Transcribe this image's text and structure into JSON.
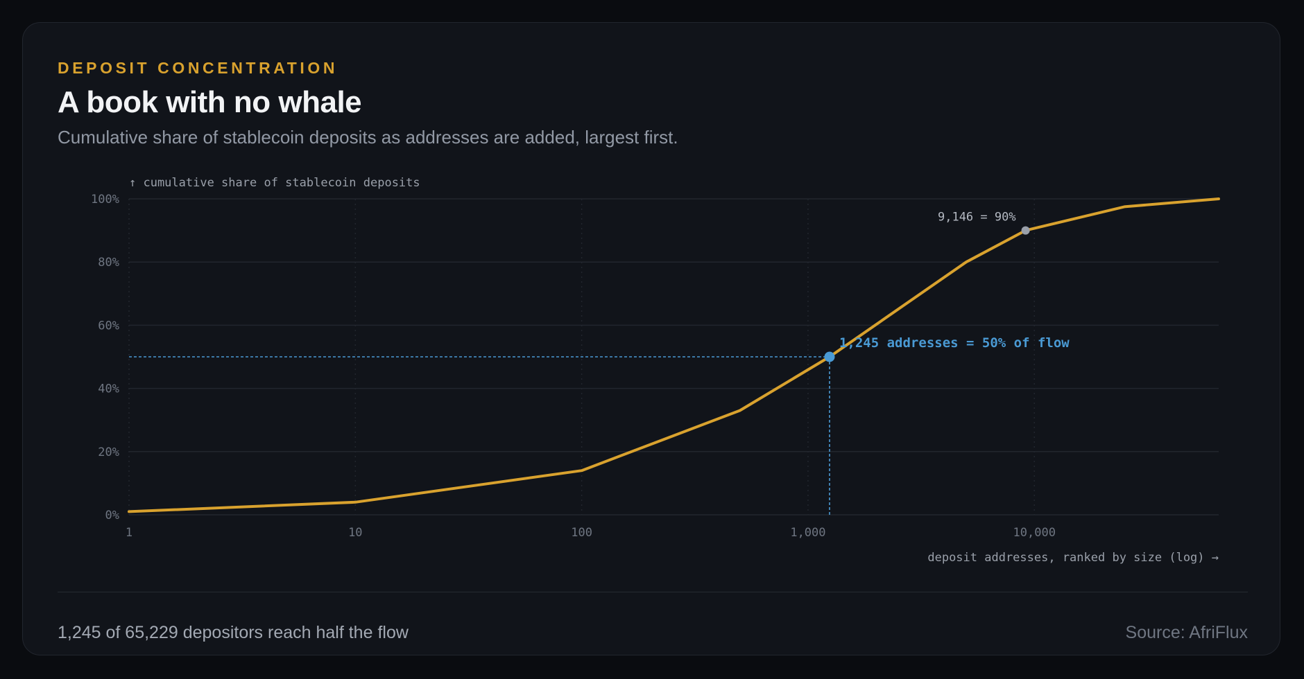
{
  "eyebrow": "DEPOSIT CONCENTRATION",
  "title": "A book with no whale",
  "subtitle": "Cumulative share of stablecoin deposits as addresses are added, largest first.",
  "footer": {
    "note": "1,245 of 65,229 depositors reach half the flow",
    "source": "Source: AfriFlux"
  },
  "colors": {
    "line": "#d9a22e",
    "highlight": "#4a9ad4",
    "marker_secondary": "#9aa0aa",
    "grid": "#22262e",
    "tick_label": "#6f7682"
  },
  "chart_data": {
    "type": "line",
    "ylabel": "↑ cumulative share of stablecoin deposits",
    "xlabel": "deposit addresses, ranked by size (log) →",
    "x_scale": "log",
    "xlim": [
      1,
      65229
    ],
    "ylim": [
      0,
      100
    ],
    "x_ticks": [
      1,
      10,
      100,
      1000,
      10000
    ],
    "x_tick_labels": [
      "1",
      "10",
      "100",
      "1,000",
      "10,000"
    ],
    "y_ticks": [
      0,
      20,
      40,
      60,
      80,
      100
    ],
    "y_tick_labels": [
      "0%",
      "20%",
      "40%",
      "60%",
      "80%",
      "100%"
    ],
    "grid": true,
    "series": [
      {
        "x": [
          1,
          10,
          100,
          500,
          1245,
          5000,
          9146,
          25000,
          65229
        ],
        "y": [
          1,
          4,
          14,
          33,
          50,
          80,
          90,
          97.5,
          100
        ]
      }
    ],
    "annotations": [
      {
        "x": 1245,
        "y": 50,
        "label": "1,245 addresses = 50% of flow",
        "style": "highlight"
      },
      {
        "x": 9146,
        "y": 90,
        "label": "9,146 = 90%",
        "style": "secondary"
      }
    ]
  }
}
